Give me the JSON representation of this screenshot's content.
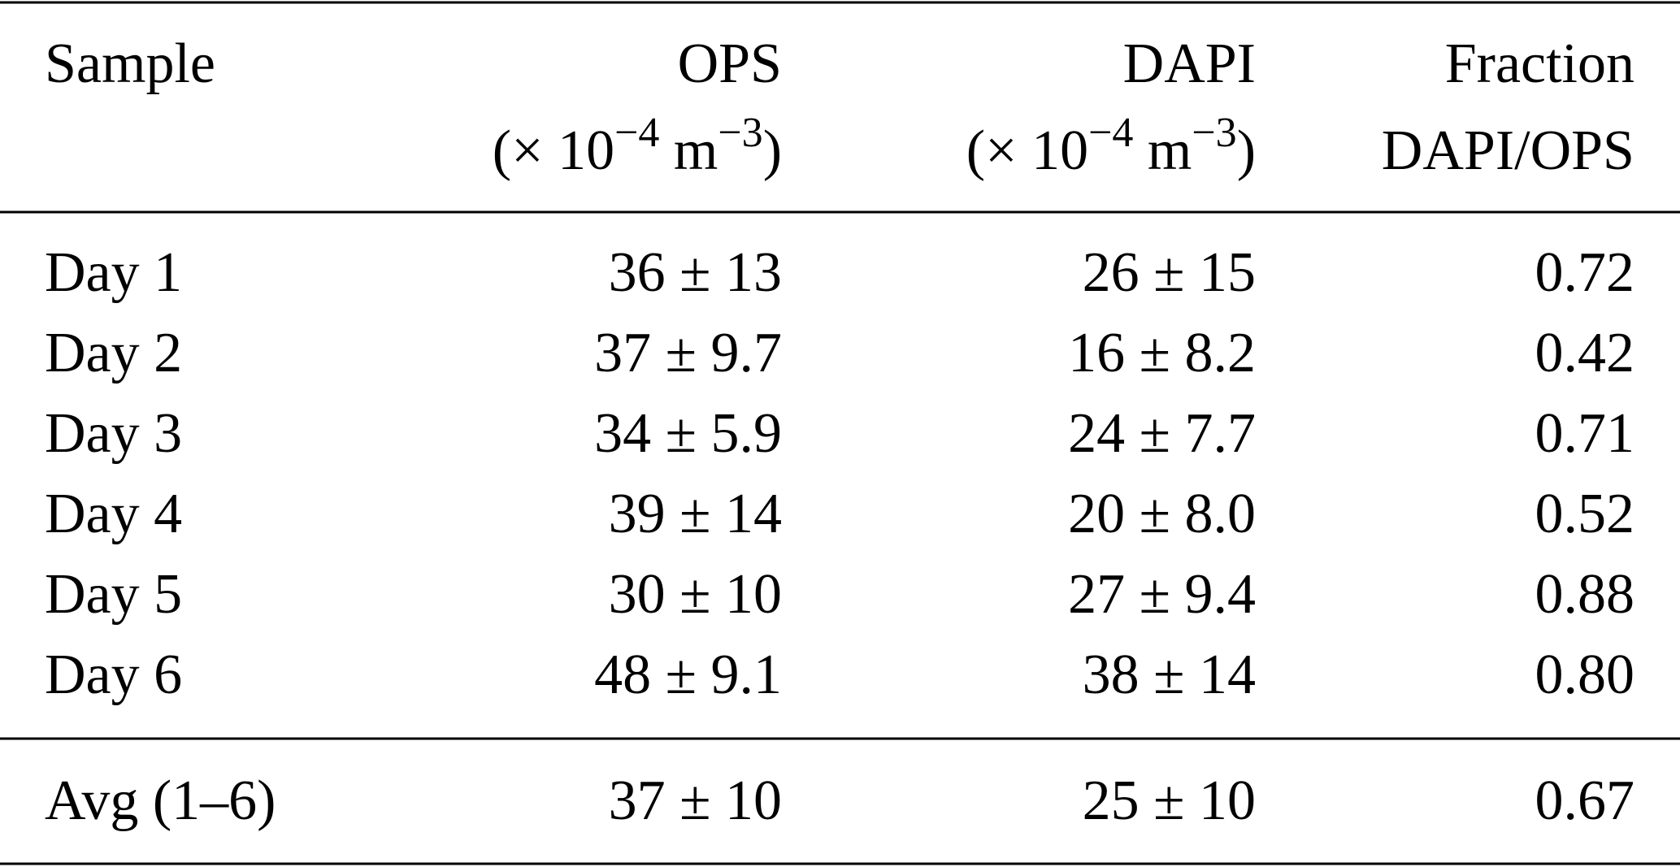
{
  "table": {
    "header": [
      {
        "title": "Sample"
      },
      {
        "title": "OPS",
        "unit": [
          "(× 10",
          "−4",
          " m",
          "−3",
          ")"
        ]
      },
      {
        "title": "DAPI",
        "unit": [
          "(× 10",
          "−4",
          " m",
          "−3",
          ")"
        ]
      },
      {
        "title": "Fraction",
        "subtitle": "DAPI/OPS"
      }
    ],
    "rows": [
      [
        "Day 1",
        "36 ± 13",
        "26 ± 15",
        "0.72"
      ],
      [
        "Day 2",
        "37 ± 9.7",
        "16 ± 8.2",
        "0.42"
      ],
      [
        "Day 3",
        "34 ± 5.9",
        "24 ± 7.7",
        "0.71"
      ],
      [
        "Day 4",
        "39 ± 14",
        "20 ± 8.0",
        "0.52"
      ],
      [
        "Day 5",
        "30 ± 10",
        "27 ± 9.4",
        "0.88"
      ],
      [
        "Day 6",
        "48 ± 9.1",
        "38 ± 14",
        "0.80"
      ]
    ],
    "summary": [
      "Avg (1–6)",
      "37 ± 10",
      "25 ± 10",
      "0.67"
    ]
  }
}
